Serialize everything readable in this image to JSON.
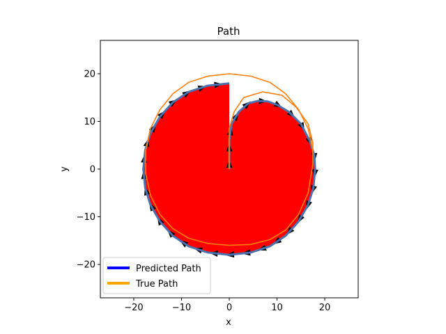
{
  "chart_data": {
    "type": "line",
    "title": "Path",
    "xlabel": "x",
    "ylabel": "y",
    "xlim": [
      -27,
      27
    ],
    "ylim": [
      -27,
      27
    ],
    "xticks": [
      -20,
      -10,
      0,
      10,
      20
    ],
    "yticks": [
      -20,
      -10,
      0,
      10,
      20
    ],
    "grid": false,
    "legend_placement": "lower-left",
    "filled_region": {
      "color": "#ff0000",
      "description_points": "region enclosed by predicted path"
    },
    "series": [
      {
        "name": "Predicted Path",
        "legend_color": "#0000ff",
        "line_color": "#4c72b0",
        "x": [
          0,
          0,
          0.5,
          2,
          4,
          6,
          8,
          10,
          12.5,
          15,
          16.8,
          17.8,
          18,
          17.6,
          16.5,
          14.5,
          11.8,
          8.5,
          4.5,
          0,
          -4.5,
          -8.5,
          -11.8,
          -14.5,
          -16.5,
          -17.6,
          -18,
          -17.6,
          -16.5,
          -14.5,
          -11.8,
          -8.5,
          -4.5,
          0
        ],
        "y": [
          0,
          6,
          9.5,
          12,
          13.8,
          14.3,
          14.2,
          13.5,
          12,
          9.5,
          6,
          3,
          0,
          -4,
          -7.5,
          -11,
          -14,
          -16.2,
          -17.5,
          -18,
          -17.5,
          -16.2,
          -14,
          -11,
          -7.5,
          -4,
          0,
          4,
          7.5,
          11,
          14,
          16.2,
          17.5,
          18
        ]
      },
      {
        "name": "True Path",
        "legend_color": "#ffa500",
        "line_color": "#ff7f0e",
        "x": [
          0,
          0,
          0,
          1,
          3,
          7,
          11,
          14,
          16.5,
          17.5,
          17.5,
          16.5,
          14.5,
          11.8,
          8.5,
          4.5,
          0,
          -4.5,
          -8.5,
          -11.8,
          -14.5,
          -16.5,
          -17.5,
          -17.5,
          -16.5,
          -14.5,
          -11.8,
          -8.5,
          -4.5,
          0,
          4.5,
          8.5,
          11.8,
          14.5,
          16.5,
          17.5
        ],
        "y": [
          0,
          5,
          8.5,
          12,
          15,
          16.2,
          15.5,
          13,
          9.5,
          5.5,
          1,
          -5,
          -9.5,
          -12.8,
          -14.8,
          -15.8,
          -16,
          -15.6,
          -14.5,
          -12.5,
          -9.5,
          -5.5,
          -1,
          4,
          8.5,
          12.5,
          15.8,
          18.2,
          19.5,
          20,
          19.5,
          18.2,
          15.8,
          12.5,
          8.5,
          4
        ]
      }
    ],
    "heading_arrows": {
      "color": "#000000",
      "count": 36
    }
  }
}
